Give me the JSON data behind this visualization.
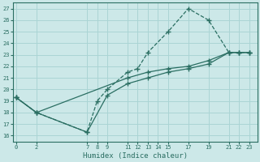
{
  "xlabel": "Humidex (Indice chaleur)",
  "bg_color": "#cce8e8",
  "line_color": "#2a6e62",
  "grid_color": "#aad4d4",
  "line1_x": [
    0,
    2,
    7,
    8,
    9,
    11,
    12,
    13,
    15,
    17,
    19,
    21,
    22,
    23
  ],
  "line1_y": [
    19.3,
    18.0,
    16.3,
    19.0,
    20.0,
    21.5,
    21.8,
    23.2,
    25.0,
    27.0,
    26.0,
    23.2,
    23.2,
    23.2
  ],
  "line2_x": [
    0,
    2,
    11,
    13,
    15,
    17,
    19,
    21,
    22,
    23
  ],
  "line2_y": [
    19.3,
    18.0,
    21.0,
    21.5,
    21.8,
    22.0,
    22.5,
    23.2,
    23.2,
    23.2
  ],
  "line3_x": [
    0,
    2,
    7,
    9,
    11,
    13,
    15,
    17,
    19,
    21,
    22,
    23
  ],
  "line3_y": [
    19.3,
    18.0,
    16.3,
    19.5,
    20.5,
    21.0,
    21.5,
    21.8,
    22.2,
    23.2,
    23.2,
    23.2
  ],
  "xticks": [
    0,
    2,
    7,
    8,
    9,
    11,
    12,
    13,
    14,
    15,
    17,
    19,
    21,
    22,
    23
  ],
  "yticks": [
    16,
    17,
    18,
    19,
    20,
    21,
    22,
    23,
    24,
    25,
    26,
    27
  ],
  "xlim": [
    -0.3,
    23.8
  ],
  "ylim": [
    15.5,
    27.5
  ]
}
